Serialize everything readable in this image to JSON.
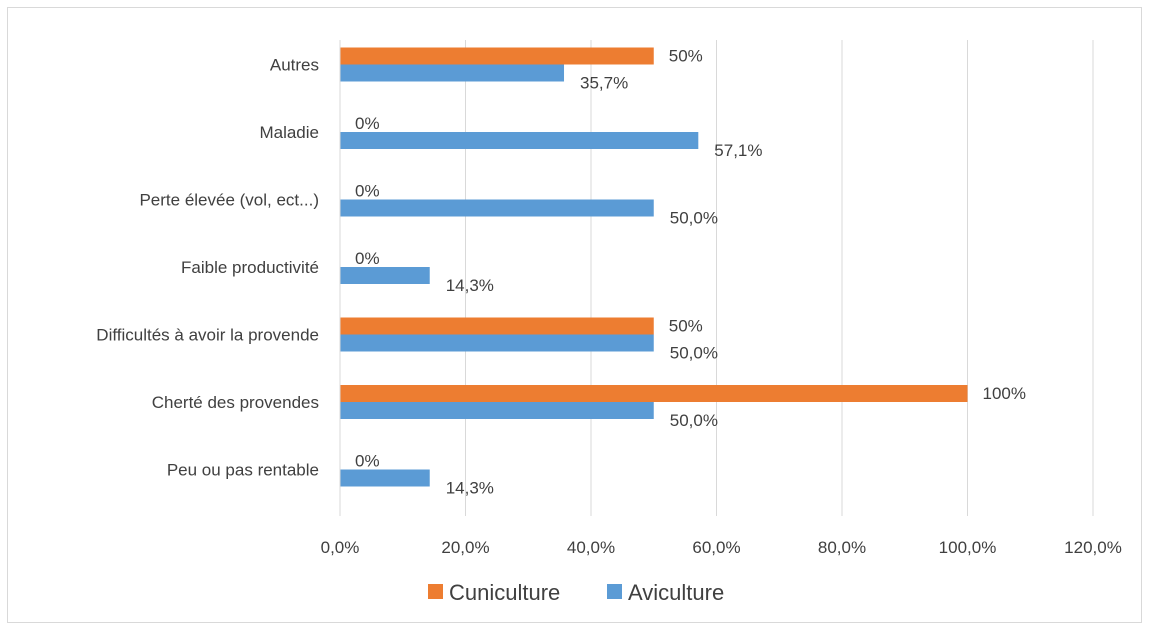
{
  "chart_data": {
    "type": "bar",
    "orientation": "horizontal",
    "categories": [
      "Autres",
      "Maladie",
      "Perte élevée (vol, ect...)",
      "Faible productivité",
      "Difficultés à avoir la provende",
      "Cherté des provendes",
      "Peu ou pas rentable"
    ],
    "series": [
      {
        "name": "Cuniculture",
        "color": "#ed7d31",
        "values": [
          50,
          0,
          0,
          0,
          50,
          100,
          0
        ],
        "labels": [
          "50%",
          "0%",
          "0%",
          "0%",
          "50%",
          "100%",
          "0%"
        ]
      },
      {
        "name": "Aviculture",
        "color": "#5b9bd5",
        "values": [
          35.7,
          57.1,
          50.0,
          14.3,
          50.0,
          50.0,
          14.3
        ],
        "labels": [
          "35,7%",
          "57,1%",
          "50,0%",
          "14,3%",
          "50,0%",
          "50,0%",
          "14,3%"
        ]
      }
    ],
    "x_ticks": [
      "0,0%",
      "20,0%",
      "40,0%",
      "60,0%",
      "80,0%",
      "100,0%",
      "120,0%"
    ],
    "xlim": [
      0,
      120
    ],
    "x_unit": "%",
    "grid": true,
    "legend_position": "bottom",
    "gridline_color": "#d9d9d9",
    "title": "",
    "xlabel": "",
    "ylabel": ""
  }
}
